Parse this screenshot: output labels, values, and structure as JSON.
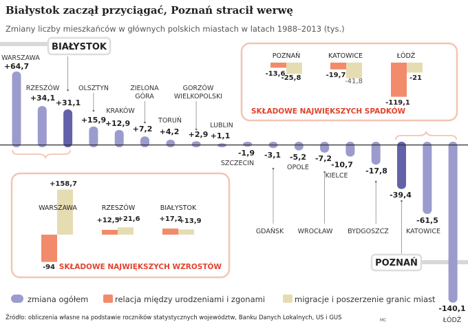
{
  "title": "Białystok zaczął przyciągać, Poznań stracił werwę",
  "subtitle": "Zmiany liczby mieszkańców w głównych polskich miastach w latach 1988–2013 (tys.)",
  "source": "Źródło: obliczenia własne na podstawie roczników statystycznych województw, Banku Danych Lokalnych, US i GUS",
  "author": "MC",
  "colors": {
    "total": "#9c9bcd",
    "highlight": "#6362a9",
    "natural": "#f28b6b",
    "migration": "#e6dcb2",
    "box": "#f3c4b5",
    "red": "#e0442e"
  },
  "chart_data": {
    "type": "bar",
    "title": "Białystok zaczął przyciągać, Poznań stracił werwę",
    "ylabel": "tys.",
    "categories": [
      "WARSZAWA",
      "RZESZÓW",
      "BIAŁYSTOK",
      "OLSZTYN",
      "KRAKÓW",
      "ZIELONA GÓRA",
      "TORUŃ",
      "GORZÓW WIELKOPOLSKI",
      "LUBLIN",
      "SZCZECIN",
      "GDAŃSK",
      "OPOLE",
      "WROCŁAW",
      "KIELCE",
      "BYDGOSZCZ",
      "POZNAŃ",
      "KATOWICE",
      "ŁÓDŹ"
    ],
    "values": [
      64.7,
      34.1,
      31.1,
      15.9,
      12.9,
      7.2,
      4.2,
      2.9,
      1.1,
      -1.9,
      -3.1,
      -5.2,
      -7.2,
      -10.7,
      -17.8,
      -39.4,
      -61.5,
      -140.1
    ],
    "value_labels": [
      "+64,7",
      "+34,1",
      "+31,1",
      "+15,9",
      "+12,9",
      "+7,2",
      "+4,2",
      "+2,9",
      "+1,1",
      "-1,9",
      "-3,1",
      "-5,2",
      "-7,2",
      "-10,7",
      "-17,8",
      "-39,4",
      "-61,5",
      "-140,1"
    ],
    "highlighted": [
      "BIAŁYSTOK",
      "POZNAŃ"
    ],
    "callouts": {
      "top": "BIAŁYSTOK",
      "bottom": "POZNAŃ"
    },
    "legend": [
      "zmiana ogółem",
      "relacja między urodzeniami i zgonami",
      "migracje i poszerzenie granic miast"
    ],
    "insets": [
      {
        "title": "SKŁADOWE NAJWIĘKSZYCH SPADKÓW",
        "cities": [
          {
            "name": "POZNAŃ",
            "natural": -13.6,
            "migration": -25.8,
            "natural_label": "-13,6",
            "migration_label": "-25,8"
          },
          {
            "name": "KATOWICE",
            "natural": -19.7,
            "migration": -41.8,
            "natural_label": "-19,7",
            "migration_label": "-41,8"
          },
          {
            "name": "ŁÓDŹ",
            "natural": -119.1,
            "migration": -21,
            "natural_label": "-119,1",
            "migration_label": "-21"
          }
        ]
      },
      {
        "title": "SKŁADOWE NAJWIĘKSZYCH WZROSTÓW",
        "cities": [
          {
            "name": "WARSZAWA",
            "natural": -94,
            "migration": 158.7,
            "natural_label": "-94",
            "migration_label": "+158,7"
          },
          {
            "name": "RZESZÓW",
            "natural": 12.5,
            "migration": 21.6,
            "natural_label": "+12,5",
            "migration_label": "+21,6"
          },
          {
            "name": "BIAŁYSTOK",
            "natural": 17.2,
            "migration": 13.9,
            "natural_label": "+17,2",
            "migration_label": "+13,9"
          }
        ]
      }
    ]
  }
}
